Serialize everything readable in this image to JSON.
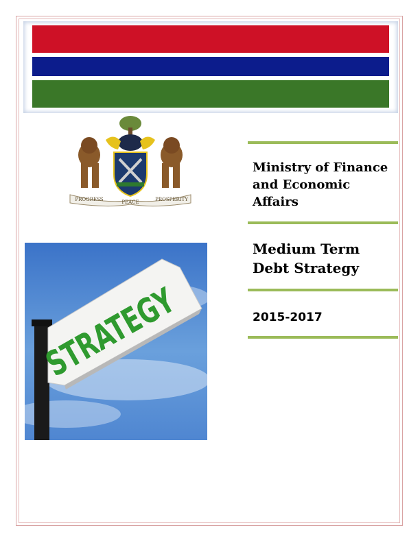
{
  "header": {
    "flag_colors": {
      "red": "#ce1126",
      "blue": "#0c1c8c",
      "green": "#3a7728"
    }
  },
  "coat_of_arms": {
    "motto": [
      "PROGRESS",
      "PEACE",
      "PROSPERITY"
    ]
  },
  "cover": {
    "ministry": "Ministry of Finance and Economic Affairs",
    "title": "Medium Term Debt Strategy",
    "period": "2015-2017",
    "accent_color": "#9bbb59"
  },
  "image": {
    "sign_text": "STRATEGY"
  }
}
